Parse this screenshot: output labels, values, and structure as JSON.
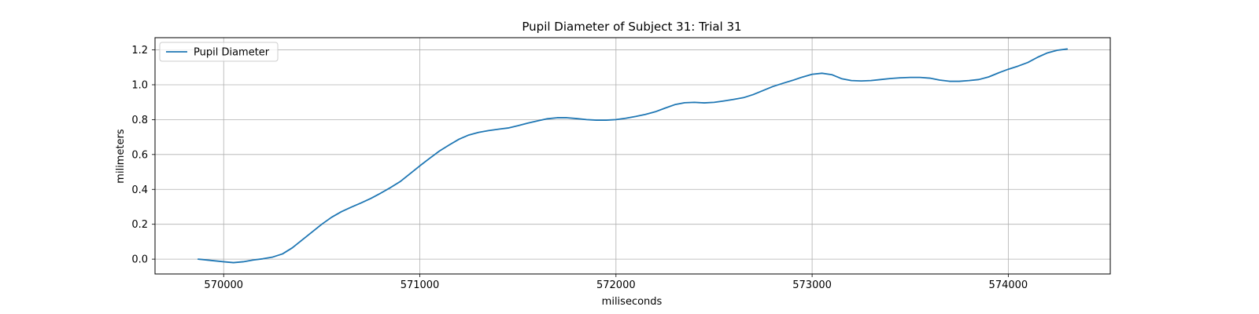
{
  "chart_data": {
    "type": "line",
    "title": "Pupil Diameter of Subject 31: Trial 31",
    "xlabel": "miliseconds",
    "ylabel": "milimeters",
    "xlim": [
      569650,
      574520
    ],
    "ylim": [
      -0.085,
      1.27
    ],
    "xticks": [
      570000,
      571000,
      572000,
      573000,
      574000
    ],
    "yticks": [
      0.0,
      0.2,
      0.4,
      0.6,
      0.8,
      1.0,
      1.2
    ],
    "xtick_labels": [
      "570000",
      "571000",
      "572000",
      "573000",
      "574000"
    ],
    "ytick_labels": [
      "0.0",
      "0.2",
      "0.4",
      "0.6",
      "0.8",
      "1.0",
      "1.2"
    ],
    "grid": true,
    "legend": {
      "placement": "top-left",
      "entries": [
        "Pupil Diameter"
      ]
    },
    "series": [
      {
        "name": "Pupil Diameter",
        "color": "#1f77b4",
        "x": [
          569870,
          570000,
          570050,
          570100,
          570150,
          570200,
          570250,
          570300,
          570350,
          570400,
          570450,
          570500,
          570550,
          570600,
          570650,
          570700,
          570750,
          570800,
          570850,
          570900,
          570950,
          571000,
          571050,
          571100,
          571150,
          571200,
          571250,
          571300,
          571350,
          571400,
          571450,
          571500,
          571550,
          571600,
          571650,
          571700,
          571750,
          571800,
          571850,
          571900,
          571950,
          572000,
          572050,
          572100,
          572150,
          572200,
          572250,
          572300,
          572350,
          572400,
          572450,
          572500,
          572550,
          572600,
          572650,
          572700,
          572750,
          572800,
          572850,
          572900,
          572950,
          573000,
          573050,
          573100,
          573150,
          573200,
          573250,
          573300,
          573350,
          573400,
          573450,
          573500,
          573550,
          573600,
          573650,
          573700,
          573750,
          573800,
          573850,
          573900,
          573950,
          574000,
          574050,
          574100,
          574150,
          574200,
          574250,
          574300
        ],
        "values": [
          0.0,
          -0.015,
          -0.02,
          -0.015,
          -0.005,
          0.002,
          0.012,
          0.03,
          0.065,
          0.11,
          0.155,
          0.2,
          0.24,
          0.272,
          0.298,
          0.322,
          0.348,
          0.378,
          0.41,
          0.445,
          0.49,
          0.535,
          0.578,
          0.62,
          0.655,
          0.688,
          0.712,
          0.727,
          0.737,
          0.745,
          0.752,
          0.765,
          0.78,
          0.793,
          0.805,
          0.811,
          0.811,
          0.806,
          0.8,
          0.797,
          0.797,
          0.8,
          0.808,
          0.818,
          0.83,
          0.845,
          0.866,
          0.886,
          0.897,
          0.899,
          0.896,
          0.899,
          0.907,
          0.916,
          0.926,
          0.944,
          0.967,
          0.99,
          1.008,
          1.025,
          1.044,
          1.06,
          1.066,
          1.058,
          1.035,
          1.024,
          1.022,
          1.024,
          1.03,
          1.036,
          1.04,
          1.042,
          1.042,
          1.038,
          1.027,
          1.02,
          1.02,
          1.024,
          1.03,
          1.045,
          1.068,
          1.089,
          1.107,
          1.128,
          1.158,
          1.183,
          1.198,
          1.205
        ]
      }
    ]
  }
}
